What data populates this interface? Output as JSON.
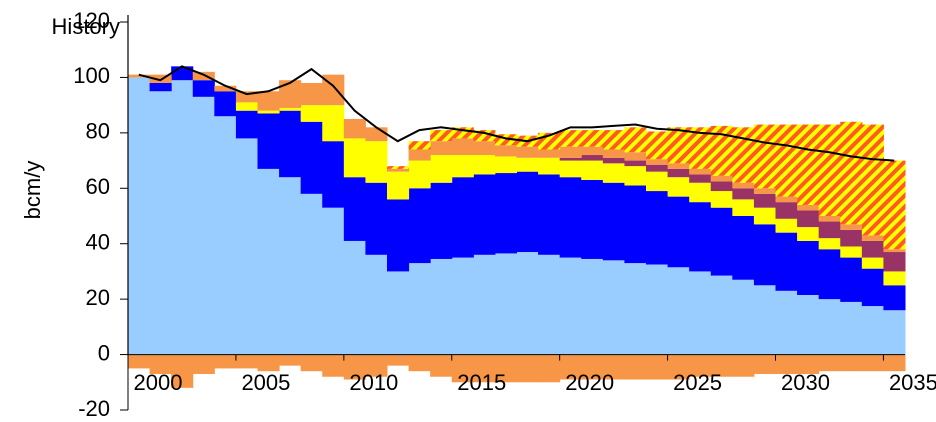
{
  "chart_data": {
    "type": "bar",
    "stacked": true,
    "y_label": "bcm/y",
    "annotation": "History",
    "annotation_after": "2011",
    "categories": [
      "2000",
      null,
      null,
      null,
      null,
      "2005",
      null,
      null,
      null,
      null,
      "2010",
      null,
      null,
      null,
      null,
      "2015",
      null,
      null,
      null,
      null,
      "2020",
      null,
      null,
      null,
      null,
      "2025",
      null,
      null,
      null,
      null,
      "2030",
      null,
      null,
      null,
      null,
      "2035"
    ],
    "ylim": [
      -20,
      120
    ],
    "yticks": [
      -20,
      0,
      20,
      40,
      60,
      80,
      100,
      120
    ],
    "series": [
      {
        "color": "#99ccff",
        "values": [
          100,
          95,
          99,
          93,
          86,
          78,
          67,
          64,
          58,
          53,
          41,
          36,
          30,
          33,
          34.5,
          35,
          36,
          36.5,
          37,
          36,
          35,
          34.5,
          34,
          33,
          32.5,
          31.5,
          30,
          28.5,
          27,
          25,
          23,
          21.5,
          20,
          19,
          17.5,
          16
        ]
      },
      {
        "color": "#0000ff",
        "values": [
          0,
          3,
          5,
          6,
          9,
          10,
          20,
          24,
          26,
          24,
          23,
          26,
          26,
          27,
          27.5,
          29,
          29,
          29,
          29,
          29,
          29,
          28.5,
          28,
          28,
          26.5,
          25.5,
          25,
          24.5,
          23,
          22,
          21,
          19.5,
          18,
          16,
          13.5,
          9
        ]
      },
      {
        "color": "#ffff00",
        "values": [
          0,
          0,
          0,
          0,
          0,
          3,
          1,
          1,
          6,
          13,
          14,
          15,
          10,
          10,
          10,
          8,
          7,
          6,
          5,
          6,
          6,
          7,
          7,
          7,
          7,
          7,
          7,
          6,
          6,
          6,
          5,
          5,
          4,
          4,
          4,
          5
        ]
      },
      {
        "color": "#993366",
        "values": [
          0,
          0,
          0,
          0,
          0,
          0,
          0,
          0,
          0,
          0,
          0,
          0,
          0,
          0,
          0,
          0,
          0,
          0,
          0,
          0,
          1,
          2,
          2,
          2,
          2.5,
          3,
          3,
          3.5,
          4,
          5,
          6,
          6,
          6,
          6,
          6,
          7
        ]
      },
      {
        "color": "#f79646",
        "values": [
          1,
          3,
          0,
          3,
          2,
          4,
          7,
          10,
          8,
          11,
          7,
          5,
          1,
          4,
          5,
          6,
          5,
          4,
          4,
          3,
          4,
          3,
          3,
          3,
          2,
          2,
          2,
          2,
          2,
          2,
          2,
          2,
          2,
          2,
          2,
          1
        ]
      },
      {
        "color": "#ffff00",
        "hatch_color": "#ff5a1f",
        "values": [
          0,
          0,
          0,
          0,
          0,
          0,
          0,
          0,
          0,
          0,
          0,
          0,
          1,
          3,
          4,
          4,
          4,
          4,
          4,
          6,
          6,
          6,
          7,
          9,
          10,
          13,
          15,
          18,
          20,
          23,
          26,
          29,
          33,
          37,
          40,
          32
        ]
      },
      {
        "color": "#f79646",
        "values": [
          -5,
          -7,
          -12,
          -7,
          -5,
          -5,
          -6,
          -4,
          -6,
          -8,
          -9,
          -8,
          -4,
          -6,
          -8,
          -10,
          -10,
          -10,
          -10,
          -10,
          -9,
          -9,
          -9,
          -9,
          -9,
          -9,
          -8,
          -8,
          -8,
          -7,
          -7,
          -7,
          -6,
          -6,
          -6,
          -6
        ]
      },
      {
        "type": "line",
        "color": "#000000",
        "values": [
          101,
          99,
          104,
          101,
          97,
          94,
          95,
          98,
          103,
          97,
          88,
          82,
          77,
          81,
          82,
          81,
          80,
          78,
          77,
          79,
          82,
          82,
          82.5,
          83,
          81.5,
          81,
          80,
          79.5,
          78,
          76.5,
          75.5,
          74,
          73,
          71.5,
          70.5,
          70
        ]
      }
    ]
  }
}
